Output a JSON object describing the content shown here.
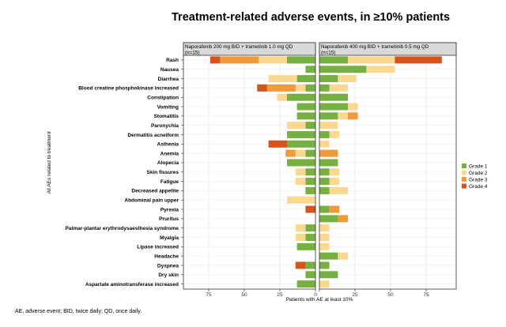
{
  "chart_data": {
    "type": "bar",
    "subtype": "diverging-stacked-horizontal",
    "title": "Treatment-related adverse events, in ≥10% patients",
    "ylabel": "All AEs related to treatment",
    "xlabel": "Patients with AE at least 10%",
    "xlim": [
      0,
      100
    ],
    "xticks": [
      75,
      50,
      25,
      0,
      25,
      50,
      75
    ],
    "legend_position": "right",
    "footnote": "AE, adverse event; BID, twice daily; QD, once daily.",
    "panels": [
      {
        "title_line1": "Naporafenib 200 mg BID + trametinib 1.0 mg QD",
        "title_line2": "(n=15)"
      },
      {
        "title_line1": "Naporafenib 400 mg BID + trametinib 0.5 mg QD",
        "title_line2": "(n=15)"
      }
    ],
    "grades": [
      {
        "name": "Grade 1",
        "color": "#76b041"
      },
      {
        "name": "Grade 2",
        "color": "#fbd88f"
      },
      {
        "name": "Grade 3",
        "color": "#f09a3a"
      },
      {
        "name": "Grade 4",
        "color": "#d4541c"
      }
    ],
    "categories": [
      "Rash",
      "Nausea",
      "Diarrhea",
      "Blood creatine phosphokinase increased",
      "Constipation",
      "Vomiting",
      "Stomatitis",
      "Paronychia",
      "Dermatitis acneiform",
      "Asthenia",
      "Anemia",
      "Alopecia",
      "Skin fissures",
      "Fatigue",
      "Decreased appetite",
      "Abdominal pain upper",
      "Pyrexia",
      "Pruritus",
      "Palmar-plantar erythrodysaesthesia syndrome",
      "Myalgia",
      "Lipase increased",
      "Headache",
      "Dyspnea",
      "Dry skin",
      "Aspartate aminotransferase increased"
    ],
    "series": [
      {
        "name": "200 mg BID + trametinib 1.0 mg QD",
        "grade_values": [
          [
            20,
            20,
            27,
            7
          ],
          [
            7,
            0,
            0,
            0
          ],
          [
            13,
            20,
            0,
            0
          ],
          [
            7,
            7,
            20,
            7
          ],
          [
            20,
            7,
            0,
            0
          ],
          [
            13,
            0,
            0,
            0
          ],
          [
            13,
            0,
            0,
            0
          ],
          [
            7,
            13,
            0,
            0
          ],
          [
            20,
            0,
            0,
            0
          ],
          [
            20,
            0,
            0,
            13
          ],
          [
            7,
            7,
            7,
            0
          ],
          [
            20,
            0,
            0,
            0
          ],
          [
            7,
            7,
            0,
            0
          ],
          [
            7,
            7,
            0,
            0
          ],
          [
            7,
            0,
            0,
            0
          ],
          [
            0,
            20,
            0,
            0
          ],
          [
            0,
            0,
            0,
            7
          ],
          [
            0,
            0,
            0,
            0
          ],
          [
            7,
            7,
            0,
            0
          ],
          [
            7,
            7,
            0,
            0
          ],
          [
            13,
            0,
            0,
            0
          ],
          [
            0,
            0,
            0,
            0
          ],
          [
            7,
            0,
            0,
            7
          ],
          [
            7,
            0,
            0,
            0
          ],
          [
            13,
            0,
            0,
            0
          ]
        ]
      },
      {
        "name": "400 mg BID + trametinib 0.5 mg QD",
        "grade_values": [
          [
            20,
            33,
            0,
            33
          ],
          [
            33,
            20,
            0,
            0
          ],
          [
            13,
            13,
            0,
            0
          ],
          [
            7,
            13,
            0,
            0
          ],
          [
            20,
            0,
            0,
            0
          ],
          [
            20,
            7,
            0,
            0
          ],
          [
            13,
            7,
            7,
            0
          ],
          [
            0,
            13,
            0,
            0
          ],
          [
            7,
            7,
            0,
            0
          ],
          [
            0,
            7,
            0,
            0
          ],
          [
            0,
            0,
            13,
            0
          ],
          [
            13,
            0,
            0,
            0
          ],
          [
            7,
            7,
            0,
            0
          ],
          [
            7,
            7,
            0,
            0
          ],
          [
            7,
            13,
            0,
            0
          ],
          [
            0,
            0,
            0,
            0
          ],
          [
            7,
            0,
            7,
            0
          ],
          [
            13,
            0,
            7,
            0
          ],
          [
            0,
            7,
            0,
            0
          ],
          [
            0,
            7,
            0,
            0
          ],
          [
            0,
            7,
            0,
            0
          ],
          [
            13,
            7,
            0,
            0
          ],
          [
            7,
            0,
            0,
            0
          ],
          [
            13,
            0,
            0,
            0
          ],
          [
            0,
            7,
            0,
            0
          ]
        ]
      }
    ]
  }
}
